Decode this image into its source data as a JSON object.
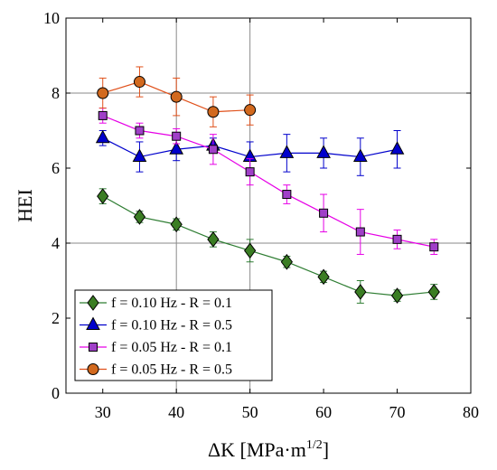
{
  "chart_data": {
    "type": "line",
    "title": "",
    "xlabel": "ΔK [MPa·m",
    "xlabel_superscript": "1/2",
    "xlabel_suffix": "]",
    "ylabel": "HEI",
    "xlim": [
      25,
      80
    ],
    "ylim": [
      0,
      10
    ],
    "xticks": [
      "30",
      "40",
      "50",
      "60",
      "70",
      "80"
    ],
    "yticks": [
      "0",
      "2",
      "4",
      "6",
      "8",
      "10"
    ],
    "grid": "major lines at x = 40, 50 and y = 4, 8",
    "legend_position": "bottom-left",
    "series": [
      {
        "name": "f = 0.10 Hz - R = 0.1",
        "marker": "diamond",
        "color": "#2e7d32",
        "fill": "#3a7d23",
        "x": [
          30,
          35,
          40,
          45,
          50,
          55,
          60,
          65,
          70,
          75
        ],
        "y": [
          5.25,
          4.7,
          4.5,
          4.1,
          3.8,
          3.5,
          3.1,
          2.7,
          2.6,
          2.7
        ],
        "err": [
          0.2,
          0.15,
          0.15,
          0.2,
          0.3,
          0.15,
          0.15,
          0.3,
          0.15,
          0.2
        ]
      },
      {
        "name": "f = 0.10 Hz - R = 0.5",
        "marker": "triangle",
        "color": "#0000cc",
        "fill": "#0000cc",
        "x": [
          30,
          35,
          40,
          45,
          50,
          55,
          60,
          65,
          70
        ],
        "y": [
          6.8,
          6.3,
          6.5,
          6.6,
          6.3,
          6.4,
          6.4,
          6.3,
          6.5
        ],
        "err": [
          0.2,
          0.4,
          0.3,
          0.2,
          0.4,
          0.5,
          0.4,
          0.5,
          0.5
        ]
      },
      {
        "name": "f = 0.05 Hz - R = 0.1",
        "marker": "square",
        "color": "#e600e6",
        "fill": "#a040c8",
        "x": [
          30,
          35,
          40,
          45,
          50,
          55,
          60,
          65,
          70,
          75
        ],
        "y": [
          7.4,
          7.0,
          6.85,
          6.5,
          5.9,
          5.3,
          4.8,
          4.3,
          4.1,
          3.9
        ],
        "err": [
          0.2,
          0.2,
          0.2,
          0.4,
          0.35,
          0.25,
          0.5,
          0.6,
          0.25,
          0.2
        ]
      },
      {
        "name": "f = 0.05 Hz - R = 0.5",
        "marker": "circle",
        "color": "#e0501a",
        "fill": "#d2691e",
        "x": [
          30,
          35,
          40,
          45,
          50
        ],
        "y": [
          8.0,
          8.3,
          7.9,
          7.5,
          7.55
        ],
        "err": [
          0.4,
          0.4,
          0.5,
          0.4,
          0.4
        ]
      }
    ]
  }
}
